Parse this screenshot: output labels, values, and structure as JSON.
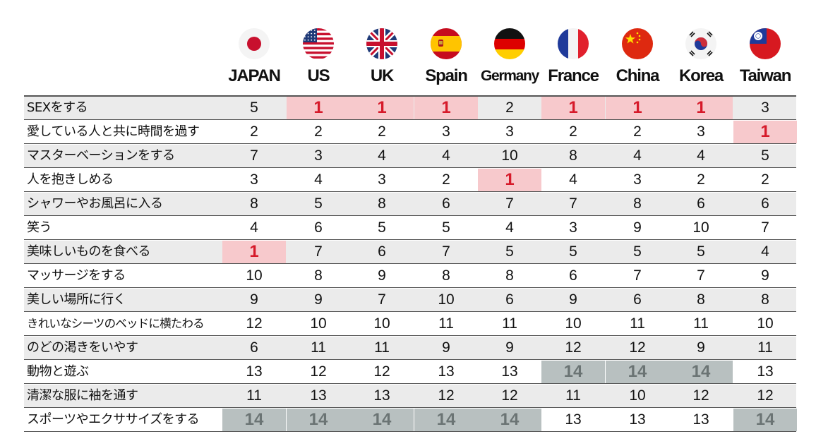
{
  "chart_data": {
    "type": "table",
    "columns": [
      "JAPAN",
      "US",
      "UK",
      "Spain",
      "Germany",
      "France",
      "China",
      "Korea",
      "Taiwan"
    ],
    "flags": [
      "japan-flag",
      "us-flag",
      "uk-flag",
      "spain-flag",
      "germany-flag",
      "france-flag",
      "china-flag",
      "korea-flag",
      "taiwan-flag"
    ],
    "highlight_colors": {
      "rank_1": "#f7c9cc",
      "rank_1_text": "#d61a2a",
      "rank_14": "#b8c0c0",
      "rank_14_text": "#6b7474"
    },
    "rows": [
      {
        "label": "SEXをする",
        "values": [
          5,
          1,
          1,
          1,
          2,
          1,
          1,
          1,
          3
        ]
      },
      {
        "label": "愛している人と共に時間を過す",
        "values": [
          2,
          2,
          2,
          3,
          3,
          2,
          2,
          3,
          1
        ]
      },
      {
        "label": "マスターベーションをする",
        "values": [
          7,
          3,
          4,
          4,
          10,
          8,
          4,
          4,
          5
        ]
      },
      {
        "label": "人を抱きしめる",
        "values": [
          3,
          4,
          3,
          2,
          1,
          4,
          3,
          2,
          2
        ]
      },
      {
        "label": "シャワーやお風呂に入る",
        "values": [
          8,
          5,
          8,
          6,
          7,
          7,
          8,
          6,
          6
        ]
      },
      {
        "label": "笑う",
        "values": [
          4,
          6,
          5,
          5,
          4,
          3,
          9,
          10,
          7
        ]
      },
      {
        "label": "美味しいものを食べる",
        "values": [
          1,
          7,
          6,
          7,
          5,
          5,
          5,
          5,
          4
        ]
      },
      {
        "label": "マッサージをする",
        "values": [
          10,
          8,
          9,
          8,
          8,
          6,
          7,
          7,
          9
        ]
      },
      {
        "label": "美しい場所に行く",
        "values": [
          9,
          9,
          7,
          10,
          6,
          9,
          6,
          8,
          8
        ]
      },
      {
        "label": "きれいなシーツのベッドに横たわる",
        "values": [
          12,
          10,
          10,
          11,
          11,
          10,
          11,
          11,
          10
        ]
      },
      {
        "label": "のどの渇きをいやす",
        "values": [
          6,
          11,
          11,
          9,
          9,
          12,
          12,
          9,
          11
        ]
      },
      {
        "label": "動物と遊ぶ",
        "values": [
          13,
          12,
          12,
          13,
          13,
          14,
          14,
          14,
          13
        ]
      },
      {
        "label": "清潔な服に袖を通す",
        "values": [
          11,
          13,
          13,
          12,
          12,
          11,
          10,
          12,
          12
        ]
      },
      {
        "label": "スポーツやエクササイズをする",
        "values": [
          14,
          14,
          14,
          14,
          14,
          13,
          13,
          13,
          14
        ]
      }
    ]
  }
}
